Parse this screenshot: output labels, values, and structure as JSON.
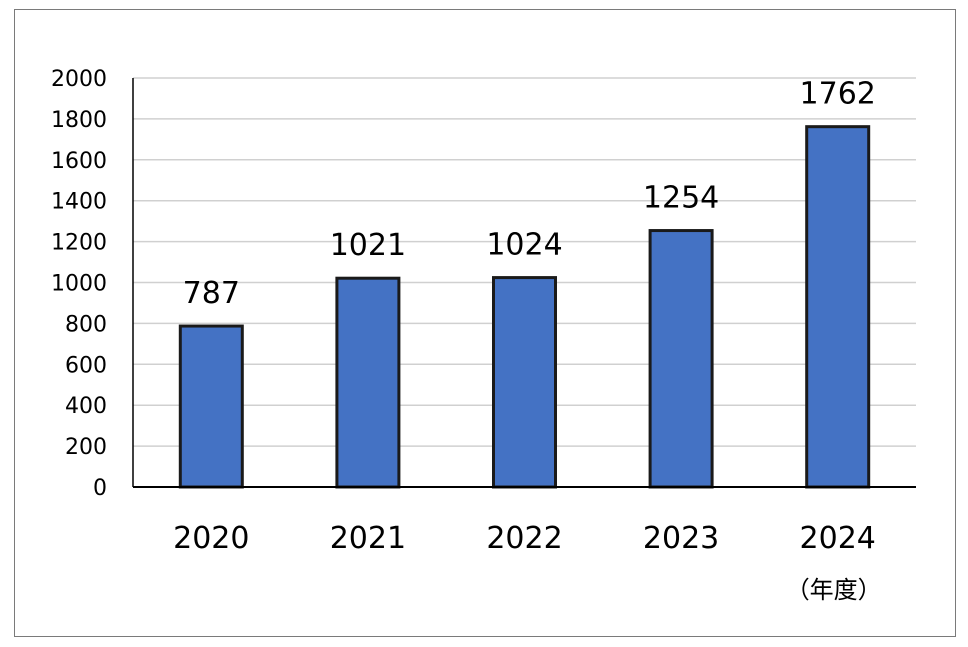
{
  "chart_data": {
    "type": "bar",
    "categories": [
      "2020",
      "2021",
      "2022",
      "2023",
      "2024"
    ],
    "values": [
      787,
      1021,
      1024,
      1254,
      1762
    ],
    "data_labels": [
      "787",
      "1021",
      "1024",
      "1254",
      "1762"
    ],
    "ylim": [
      0,
      2000
    ],
    "yticks": [
      "0",
      "200",
      "400",
      "600",
      "800",
      "1000",
      "1200",
      "1400",
      "1600",
      "1800",
      "2000"
    ],
    "x_unit_label": "（年度）",
    "grid": true,
    "colors": {
      "bar": "#4472c4",
      "bar_edge": "#1a1a1a",
      "grid": "#d0d0d0",
      "axis": "#000000"
    }
  }
}
